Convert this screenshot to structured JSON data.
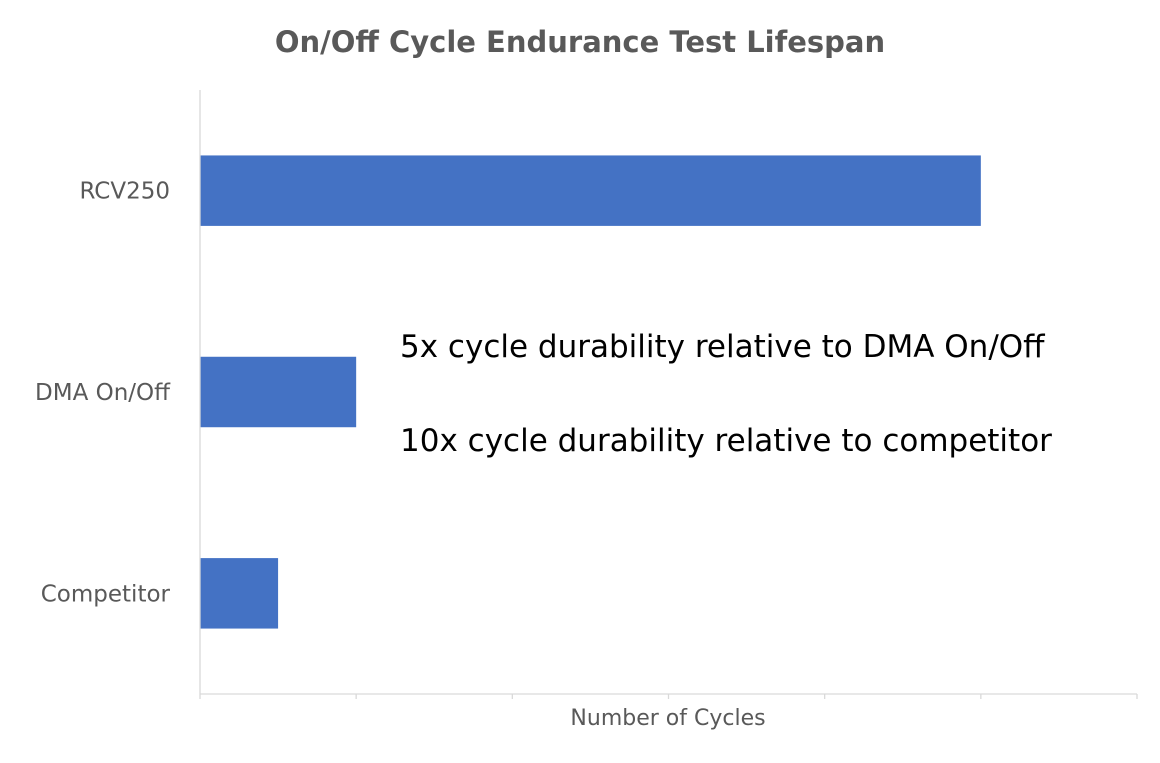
{
  "chart_data": {
    "type": "bar",
    "orientation": "horizontal",
    "title": "On/Off Cycle Endurance Test Lifespan",
    "xlabel": "Number of Cycles",
    "ylabel": "",
    "categories": [
      "RCV250",
      "DMA On/Off",
      "Competitor"
    ],
    "values": [
      10,
      2,
      1
    ],
    "xlim": [
      0,
      12
    ],
    "x_tick_labels_shown": false,
    "grid": false,
    "legend": "none",
    "bar_color": "#4472c4",
    "annotations": [
      "5x cycle durability relative to DMA On/Off",
      "10x cycle durability relative to competitor"
    ]
  }
}
